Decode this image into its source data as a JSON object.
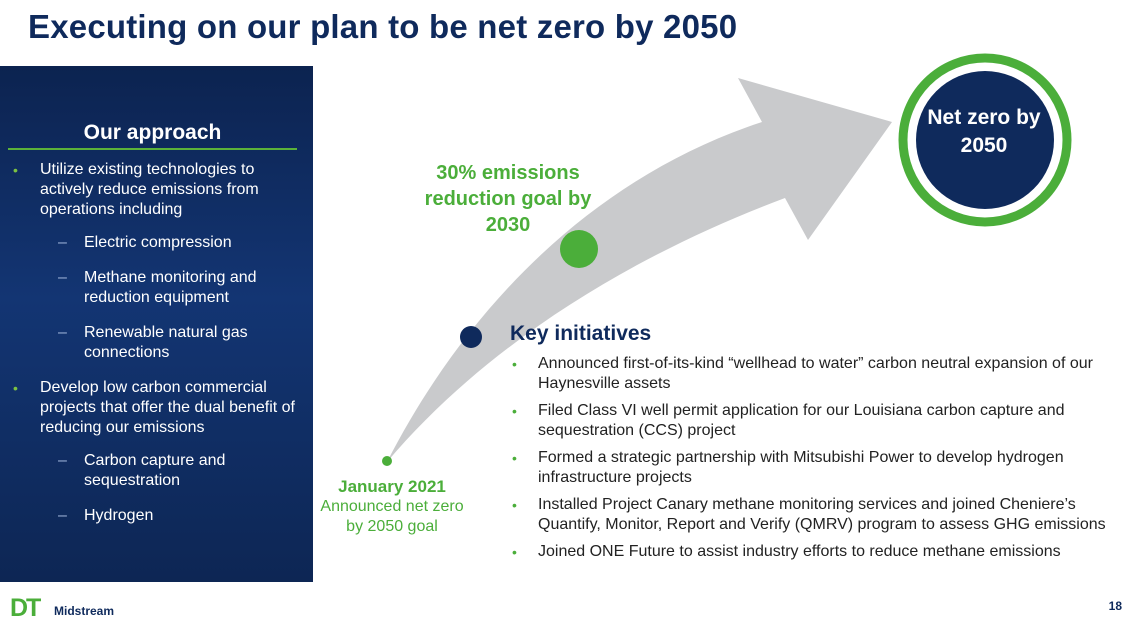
{
  "slide": {
    "title": "Executing on our plan to be net zero by 2050",
    "page_number": "18"
  },
  "approach": {
    "heading": "Our approach",
    "items": [
      {
        "text": "Utilize existing technologies to actively reduce emissions from operations including",
        "subitems": [
          "Electric compression",
          "Methane monitoring and reduction equipment",
          "Renewable natural gas connections"
        ]
      },
      {
        "text": "Develop low carbon commercial projects that offer the dual benefit of reducing our emissions",
        "subitems": [
          "Carbon capture and sequestration",
          "Hydrogen"
        ]
      }
    ]
  },
  "timeline": {
    "goal_2030": "30% emissions reduction goal by 2030",
    "net_zero": "Net zero by 2050",
    "start_title": "January 2021",
    "start_sub": "Announced net zero by 2050 goal"
  },
  "key_initiatives": {
    "heading": "Key initiatives",
    "items": [
      "Announced first-of-its-kind “wellhead to water” carbon neutral expansion of our Haynesville assets",
      "Filed Class VI well permit application for our Louisiana carbon capture and sequestration (CCS) project",
      "Formed a strategic partnership with Mitsubishi Power to develop hydrogen infrastructure projects",
      "Installed Project Canary methane monitoring services and joined Cheniere’s Quantify, Monitor, Report and Verify (QMRV) program to assess GHG emissions",
      "Joined ONE Future to assist industry efforts to reduce methane emissions"
    ]
  },
  "logo": {
    "mark": "DT",
    "name": "Midstream"
  },
  "colors": {
    "navy": "#0f2a5c",
    "green": "#4bae3a",
    "arrow_gray": "#c9cacc"
  }
}
